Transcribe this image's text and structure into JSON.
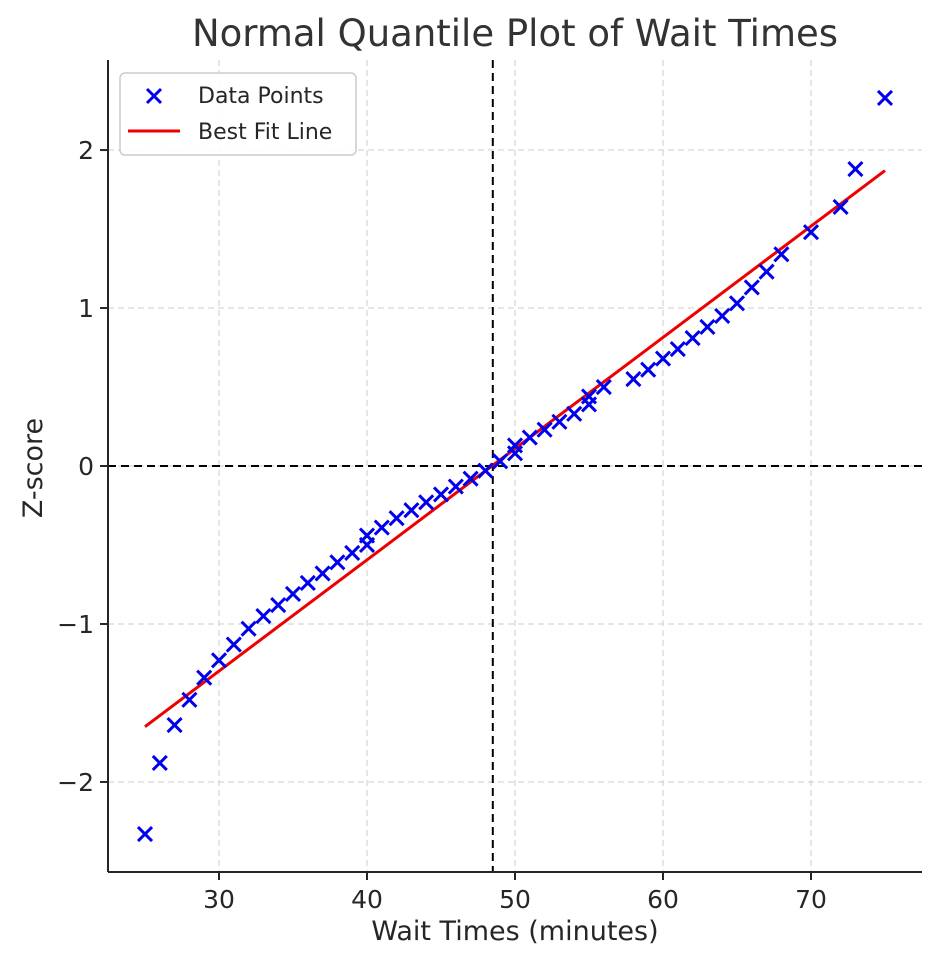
{
  "chart_data": {
    "type": "scatter",
    "title": "Normal Quantile Plot of Wait Times",
    "xlabel": "Wait Times (minutes)",
    "ylabel": "Z-score",
    "xlim": [
      22.5,
      77.5
    ],
    "ylim": [
      -2.57,
      2.57
    ],
    "x_ticks": [
      30,
      40,
      50,
      60,
      70
    ],
    "y_ticks": [
      -2,
      -1,
      0,
      1,
      2
    ],
    "x_tick_labels": [
      "30",
      "40",
      "50",
      "60",
      "70"
    ],
    "y_tick_labels": [
      "−2",
      "−1",
      "0",
      "1",
      "2"
    ],
    "grid": true,
    "legend_position": "top-left",
    "series": [
      {
        "name": "Data Points",
        "kind": "scatter",
        "marker": "x",
        "color": "#0000ee",
        "points": [
          [
            25,
            -2.33
          ],
          [
            26,
            -1.88
          ],
          [
            27,
            -1.64
          ],
          [
            28,
            -1.48
          ],
          [
            29,
            -1.34
          ],
          [
            30,
            -1.23
          ],
          [
            31,
            -1.13
          ],
          [
            32,
            -1.03
          ],
          [
            33,
            -0.95
          ],
          [
            34,
            -0.88
          ],
          [
            35,
            -0.81
          ],
          [
            36,
            -0.74
          ],
          [
            37,
            -0.68
          ],
          [
            38,
            -0.61
          ],
          [
            39,
            -0.55
          ],
          [
            40,
            -0.5
          ],
          [
            40,
            -0.44
          ],
          [
            41,
            -0.39
          ],
          [
            42,
            -0.33
          ],
          [
            43,
            -0.28
          ],
          [
            44,
            -0.23
          ],
          [
            45,
            -0.18
          ],
          [
            46,
            -0.13
          ],
          [
            47,
            -0.08
          ],
          [
            48,
            -0.03
          ],
          [
            49,
            0.03
          ],
          [
            50,
            0.08
          ],
          [
            50,
            0.13
          ],
          [
            51,
            0.18
          ],
          [
            52,
            0.23
          ],
          [
            53,
            0.28
          ],
          [
            54,
            0.33
          ],
          [
            55,
            0.39
          ],
          [
            55,
            0.44
          ],
          [
            56,
            0.5
          ],
          [
            58,
            0.55
          ],
          [
            59,
            0.61
          ],
          [
            60,
            0.68
          ],
          [
            61,
            0.74
          ],
          [
            62,
            0.81
          ],
          [
            63,
            0.88
          ],
          [
            64,
            0.95
          ],
          [
            65,
            1.03
          ],
          [
            66,
            1.13
          ],
          [
            67,
            1.23
          ],
          [
            68,
            1.34
          ],
          [
            70,
            1.48
          ],
          [
            72,
            1.64
          ],
          [
            73,
            1.88
          ],
          [
            75,
            2.33
          ]
        ]
      },
      {
        "name": "Best Fit Line",
        "kind": "line",
        "color": "#ee0000",
        "points": [
          [
            25,
            -1.65
          ],
          [
            75,
            1.87
          ]
        ]
      }
    ],
    "reference_lines": [
      {
        "orientation": "vertical",
        "value": 48.5,
        "style": "dashed",
        "color": "#000000"
      },
      {
        "orientation": "horizontal",
        "value": 0,
        "style": "dashed",
        "color": "#000000"
      }
    ]
  }
}
